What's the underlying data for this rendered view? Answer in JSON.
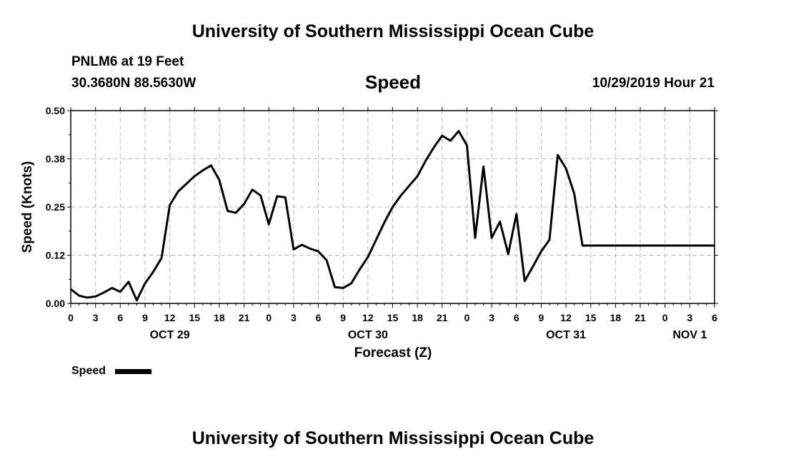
{
  "header": {
    "top_title": "University of Southern Mississippi Ocean Cube",
    "station_line": "PNLM6 at 19 Feet",
    "coords_line": "30.3680N 88.5630W",
    "datetime": "10/29/2019 Hour 21",
    "footer_title": "University of Southern Mississippi Ocean Cube"
  },
  "chart_data": {
    "type": "line",
    "title": "Speed",
    "xlabel": "Forecast (Z)",
    "ylabel": "Speed (Knots)",
    "ylim": [
      0,
      0.5
    ],
    "xlim": [
      0,
      78
    ],
    "y_ticks": [
      "0.00",
      "0.12",
      "0.25",
      "0.38",
      "0.50"
    ],
    "x_tick_labels": [
      "0",
      "3",
      "6",
      "9",
      "12",
      "15",
      "18",
      "21",
      "0",
      "3",
      "6",
      "9",
      "12",
      "15",
      "18",
      "21",
      "0",
      "3",
      "6",
      "9",
      "12",
      "15",
      "18",
      "21",
      "0",
      "3",
      "6"
    ],
    "day_labels": [
      {
        "label": "OCT 29",
        "hour": 12
      },
      {
        "label": "OCT 30",
        "hour": 36
      },
      {
        "label": "OCT 31",
        "hour": 60
      },
      {
        "label": "NOV 1",
        "hour": 75
      }
    ],
    "grid": true,
    "legend_position": "bottom-left",
    "series": [
      {
        "name": "Speed",
        "color": "#000000",
        "x": [
          0,
          1,
          2,
          3,
          4,
          5,
          6,
          7,
          8,
          9,
          10,
          11,
          12,
          13,
          14,
          15,
          16,
          17,
          18,
          19,
          20,
          21,
          22,
          23,
          24,
          25,
          26,
          27,
          28,
          29,
          30,
          31,
          32,
          33,
          34,
          35,
          36,
          37,
          38,
          39,
          40,
          41,
          42,
          43,
          44,
          45,
          46,
          47,
          48,
          49,
          50,
          51,
          52,
          53,
          54,
          55,
          56,
          57,
          58,
          59,
          60,
          61,
          62,
          63,
          64,
          65,
          66,
          67,
          68,
          69,
          70,
          71,
          72,
          73,
          74,
          75,
          76,
          77,
          78
        ],
        "y": [
          0.037,
          0.02,
          0.015,
          0.018,
          0.028,
          0.04,
          0.03,
          0.056,
          0.008,
          0.052,
          0.082,
          0.118,
          0.255,
          0.29,
          0.31,
          0.33,
          0.345,
          0.358,
          0.32,
          0.24,
          0.235,
          0.258,
          0.295,
          0.28,
          0.205,
          0.278,
          0.275,
          0.14,
          0.152,
          0.142,
          0.135,
          0.112,
          0.042,
          0.04,
          0.052,
          0.088,
          0.12,
          0.165,
          0.21,
          0.25,
          0.28,
          0.305,
          0.33,
          0.37,
          0.405,
          0.435,
          0.422,
          0.447,
          0.41,
          0.17,
          0.355,
          0.17,
          0.212,
          0.128,
          0.232,
          0.058,
          0.096,
          0.135,
          0.165,
          0.385,
          0.35,
          0.285,
          0.15,
          0.15,
          0.15,
          0.15,
          0.15,
          0.15,
          0.15,
          0.15,
          0.15,
          0.15,
          0.15,
          0.15,
          0.15,
          0.15,
          0.15,
          0.15,
          0.15
        ]
      }
    ]
  }
}
